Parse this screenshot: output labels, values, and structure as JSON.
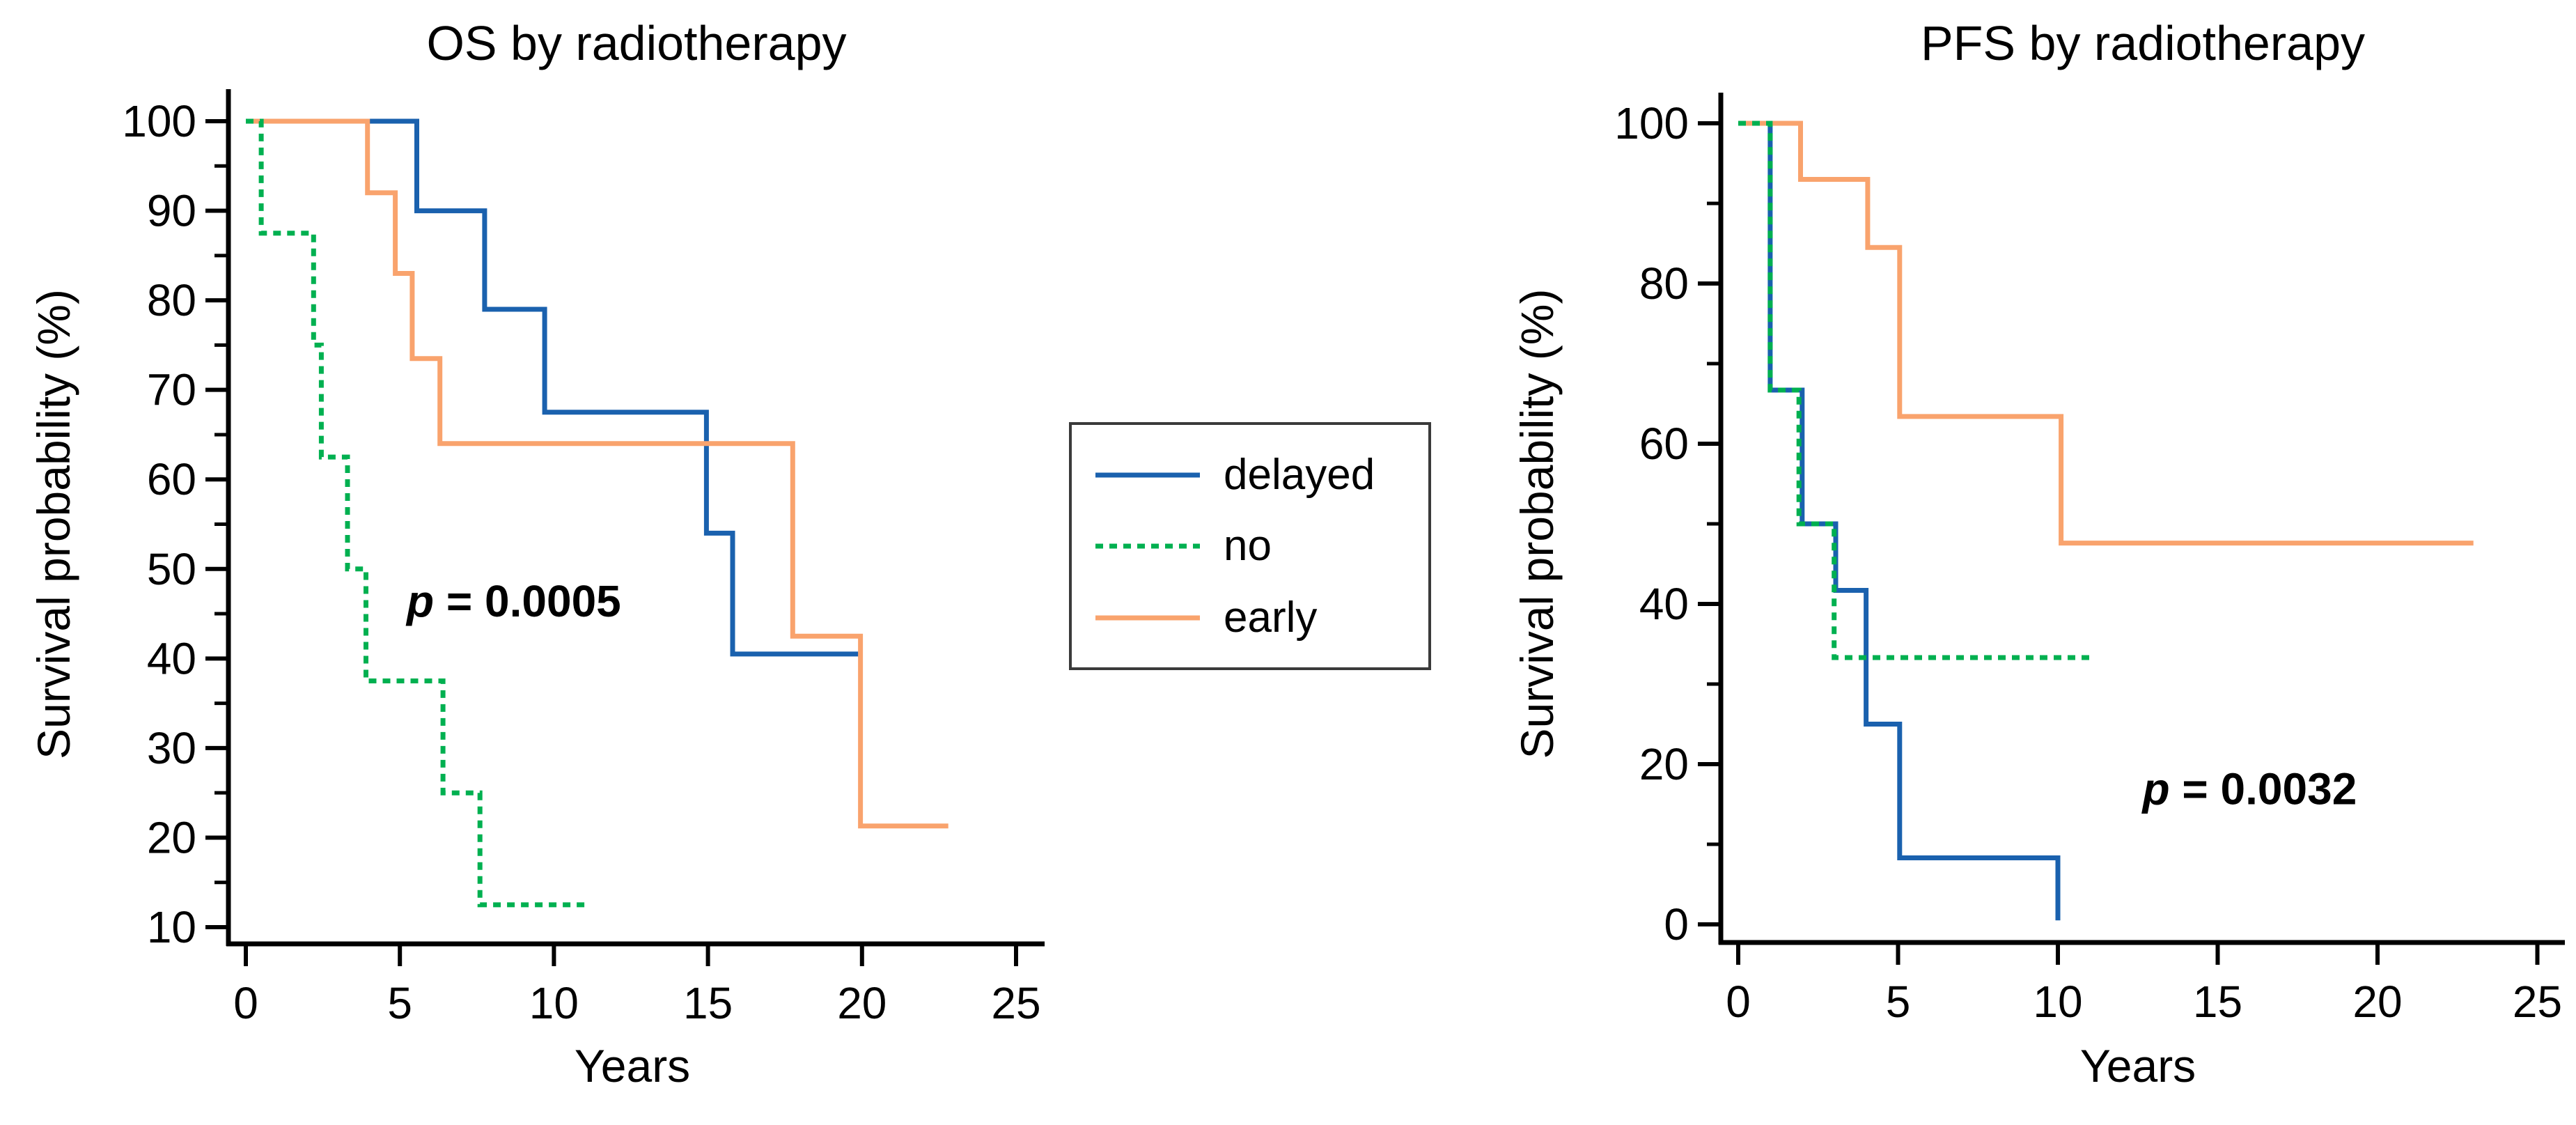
{
  "figure": {
    "background": "#ffffff"
  },
  "colors": {
    "delayed": "#1a61ae",
    "no": "#00b050",
    "early": "#f9a36d",
    "axis": "#000000",
    "legend_border": "#3a3a3a"
  },
  "legend": {
    "position": "center-between-charts",
    "entries": [
      {
        "label": "delayed",
        "series": "delayed"
      },
      {
        "label": "no",
        "series": "no"
      },
      {
        "label": "early",
        "series": "early"
      }
    ]
  },
  "chart_data": [
    {
      "type": "line",
      "subtype": "kaplan-meier-step",
      "title": "OS by radiotherapy",
      "xlabel": "Years",
      "ylabel": "Survival probability (%)",
      "xlim": [
        0,
        25
      ],
      "ylim": [
        10,
        100
      ],
      "xticks": [
        0,
        5,
        10,
        15,
        20,
        25
      ],
      "yticks": [
        10,
        20,
        30,
        40,
        50,
        60,
        70,
        80,
        90,
        100
      ],
      "yticks_minor": [
        15,
        25,
        35,
        45,
        55,
        65,
        75,
        85,
        95
      ],
      "grid": false,
      "annotation": {
        "text_italic": "p",
        "text": " = 0.0005",
        "x": 8.7,
        "y": 46.5
      },
      "series": [
        {
          "name": "delayed",
          "dash": "solid",
          "z": 1,
          "points": [
            [
              0,
              100
            ],
            [
              5.55,
              100
            ],
            [
              5.55,
              90
            ],
            [
              7.75,
              90
            ],
            [
              7.75,
              79
            ],
            [
              9.7,
              79
            ],
            [
              9.7,
              67.5
            ],
            [
              14.95,
              67.5
            ],
            [
              14.95,
              54
            ],
            [
              15.8,
              54
            ],
            [
              15.8,
              40.5
            ],
            [
              19.9,
              40.5
            ]
          ]
        },
        {
          "name": "no",
          "dash": "dashed",
          "z": 3,
          "points": [
            [
              0,
              100
            ],
            [
              0.5,
              100
            ],
            [
              0.5,
              87.5
            ],
            [
              2.2,
              87.5
            ],
            [
              2.2,
              75
            ],
            [
              2.45,
              75
            ],
            [
              2.45,
              62.5
            ],
            [
              3.3,
              62.5
            ],
            [
              3.3,
              50
            ],
            [
              3.9,
              50
            ],
            [
              3.9,
              37.5
            ],
            [
              6.4,
              37.5
            ],
            [
              6.4,
              25
            ],
            [
              7.6,
              25
            ],
            [
              7.6,
              12.5
            ],
            [
              11,
              12.5
            ]
          ]
        },
        {
          "name": "early",
          "dash": "solid",
          "z": 2,
          "points": [
            [
              0,
              100
            ],
            [
              3.95,
              100
            ],
            [
              3.95,
              92
            ],
            [
              4.85,
              92
            ],
            [
              4.85,
              83
            ],
            [
              5.4,
              83
            ],
            [
              5.4,
              73.5
            ],
            [
              6.3,
              73.5
            ],
            [
              6.3,
              64
            ],
            [
              17.75,
              64
            ],
            [
              17.75,
              42.5
            ],
            [
              19.95,
              42.5
            ],
            [
              19.95,
              21.3
            ],
            [
              22.8,
              21.3
            ]
          ]
        }
      ]
    },
    {
      "type": "line",
      "subtype": "kaplan-meier-step",
      "title": "PFS by radiotherapy",
      "xlabel": "Years",
      "ylabel": "Survival probability (%)",
      "xlim": [
        0,
        25
      ],
      "ylim": [
        0,
        100
      ],
      "xticks": [
        0,
        5,
        10,
        15,
        20,
        25
      ],
      "yticks": [
        0,
        20,
        40,
        60,
        80,
        100
      ],
      "yticks_minor": [
        10,
        30,
        50,
        70,
        90
      ],
      "grid": false,
      "annotation": {
        "text_italic": "p",
        "text": " = 0.0032",
        "x": 16.0,
        "y": 17.0
      },
      "series": [
        {
          "name": "delayed",
          "dash": "solid",
          "z": 1,
          "points": [
            [
              0,
              100
            ],
            [
              1,
              100
            ],
            [
              1,
              66.7
            ],
            [
              2,
              66.7
            ],
            [
              2,
              50
            ],
            [
              3.05,
              50
            ],
            [
              3.05,
              41.7
            ],
            [
              4,
              41.7
            ],
            [
              4,
              25
            ],
            [
              5.05,
              25
            ],
            [
              5.05,
              8.3
            ],
            [
              10,
              8.3
            ],
            [
              10,
              0.5
            ]
          ]
        },
        {
          "name": "no",
          "dash": "dashed",
          "z": 3,
          "points": [
            [
              0,
              100
            ],
            [
              1,
              100
            ],
            [
              1,
              66.7
            ],
            [
              1.9,
              66.7
            ],
            [
              1.9,
              50
            ],
            [
              3,
              50
            ],
            [
              3,
              33.3
            ],
            [
              11,
              33.3
            ]
          ]
        },
        {
          "name": "early",
          "dash": "solid",
          "z": 2,
          "points": [
            [
              0,
              100
            ],
            [
              1.95,
              100
            ],
            [
              1.95,
              93
            ],
            [
              4.05,
              93
            ],
            [
              4.05,
              84.5
            ],
            [
              5.05,
              84.5
            ],
            [
              5.05,
              63.4
            ],
            [
              10.1,
              63.4
            ],
            [
              10.1,
              47.6
            ],
            [
              23,
              47.6
            ]
          ]
        }
      ]
    }
  ]
}
